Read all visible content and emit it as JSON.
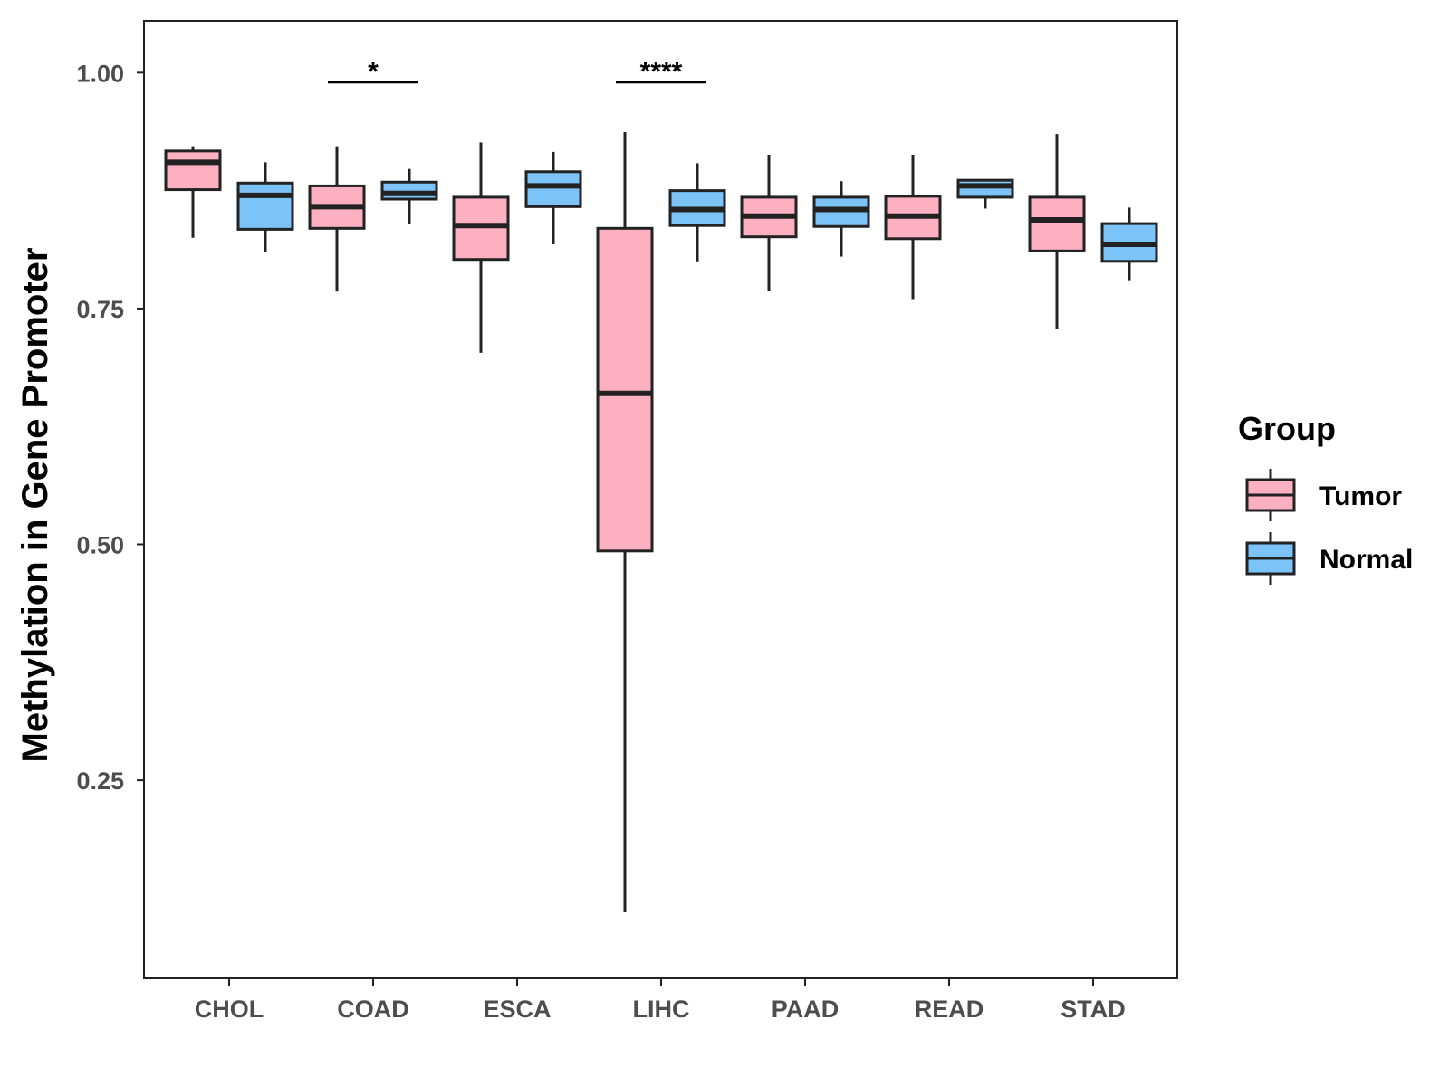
{
  "chart_data": {
    "type": "box",
    "title": "",
    "xlabel": "",
    "ylabel": "Methylation in Gene Promoter",
    "ylim": [
      0.04,
      1.055
    ],
    "yticks": [
      0.25,
      0.5,
      0.75,
      1.0
    ],
    "ytick_labels": [
      "0.25",
      "0.50",
      "0.75",
      "1.00"
    ],
    "categories": [
      "CHOL",
      "COAD",
      "ESCA",
      "LIHC",
      "PAAD",
      "READ",
      "STAD"
    ],
    "legend": {
      "title": "Group",
      "position": "right",
      "entries": [
        {
          "name": "Tumor",
          "color": "#fcb0c1"
        },
        {
          "name": "Normal",
          "color": "#7cc3f7"
        }
      ]
    },
    "series": [
      {
        "name": "Tumor",
        "color": "#fcb0c1",
        "boxes": [
          {
            "category": "CHOL",
            "whisker_low": 0.825,
            "q1": 0.876,
            "median": 0.905,
            "q3": 0.917,
            "whisker_high": 0.922
          },
          {
            "category": "COAD",
            "whisker_low": 0.768,
            "q1": 0.835,
            "median": 0.858,
            "q3": 0.88,
            "whisker_high": 0.922
          },
          {
            "category": "ESCA",
            "whisker_low": 0.703,
            "q1": 0.802,
            "median": 0.838,
            "q3": 0.868,
            "whisker_high": 0.926
          },
          {
            "category": "LIHC",
            "whisker_low": 0.11,
            "q1": 0.493,
            "median": 0.66,
            "q3": 0.835,
            "whisker_high": 0.937
          },
          {
            "category": "PAAD",
            "whisker_low": 0.769,
            "q1": 0.826,
            "median": 0.848,
            "q3": 0.868,
            "whisker_high": 0.913
          },
          {
            "category": "READ",
            "whisker_low": 0.76,
            "q1": 0.824,
            "median": 0.848,
            "q3": 0.869,
            "whisker_high": 0.913
          },
          {
            "category": "STAD",
            "whisker_low": 0.728,
            "q1": 0.811,
            "median": 0.844,
            "q3": 0.868,
            "whisker_high": 0.935
          }
        ]
      },
      {
        "name": "Normal",
        "color": "#7cc3f7",
        "boxes": [
          {
            "category": "CHOL",
            "whisker_low": 0.81,
            "q1": 0.834,
            "median": 0.87,
            "q3": 0.883,
            "whisker_high": 0.905
          },
          {
            "category": "COAD",
            "whisker_low": 0.84,
            "q1": 0.866,
            "median": 0.872,
            "q3": 0.884,
            "whisker_high": 0.898
          },
          {
            "category": "ESCA",
            "whisker_low": 0.818,
            "q1": 0.858,
            "median": 0.88,
            "q3": 0.895,
            "whisker_high": 0.916
          },
          {
            "category": "LIHC",
            "whisker_low": 0.8,
            "q1": 0.838,
            "median": 0.855,
            "q3": 0.875,
            "whisker_high": 0.904
          },
          {
            "category": "PAAD",
            "whisker_low": 0.805,
            "q1": 0.837,
            "median": 0.855,
            "q3": 0.868,
            "whisker_high": 0.885
          },
          {
            "category": "READ",
            "whisker_low": 0.856,
            "q1": 0.868,
            "median": 0.88,
            "q3": 0.886,
            "whisker_high": 0.886
          },
          {
            "category": "STAD",
            "whisker_low": 0.78,
            "q1": 0.8,
            "median": 0.818,
            "q3": 0.84,
            "whisker_high": 0.857
          }
        ]
      }
    ],
    "annotations": [
      {
        "category": "COAD",
        "y": 0.99,
        "label": "*"
      },
      {
        "category": "LIHC",
        "y": 0.99,
        "label": "****"
      }
    ],
    "grid": false
  }
}
